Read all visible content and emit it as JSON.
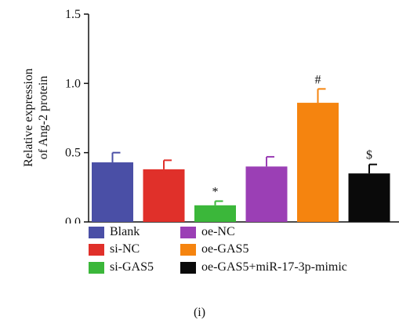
{
  "chart_data": {
    "type": "bar",
    "ylabel": [
      "Relative expression",
      "of Ang-2 protein"
    ],
    "ylim": [
      0,
      1.5
    ],
    "yticks": [
      {
        "value": 0.0,
        "label": "0.0"
      },
      {
        "value": 0.5,
        "label": "0.5"
      },
      {
        "value": 1.0,
        "label": "1.0"
      },
      {
        "value": 1.5,
        "label": "1.5"
      }
    ],
    "categories": [
      "Blank",
      "si-NC",
      "si-GAS5",
      "oe-NC",
      "oe-GAS5",
      "oe-GAS5+miR-17-3p-mimic"
    ],
    "values": [
      0.43,
      0.38,
      0.12,
      0.4,
      0.86,
      0.35
    ],
    "errors": [
      0.07,
      0.065,
      0.03,
      0.07,
      0.1,
      0.065
    ],
    "annotations": [
      "",
      "",
      "*",
      "",
      "#",
      "$"
    ],
    "colors": [
      "#4a4fa6",
      "#e0302a",
      "#3bb73a",
      "#9b3fb5",
      "#f5840f",
      "#0a0a0a"
    ],
    "grid": false,
    "legend_position": "bottom"
  },
  "legend": {
    "items": [
      {
        "label": "Blank",
        "color": "#4a4fa6"
      },
      {
        "label": "si-NC",
        "color": "#e0302a"
      },
      {
        "label": "si-GAS5",
        "color": "#3bb73a"
      },
      {
        "label": "oe-NC",
        "color": "#9b3fb5"
      },
      {
        "label": "oe-GAS5",
        "color": "#f5840f"
      },
      {
        "label": "oe-GAS5+miR-17-3p-mimic",
        "color": "#0a0a0a"
      }
    ]
  },
  "caption": "(i)"
}
